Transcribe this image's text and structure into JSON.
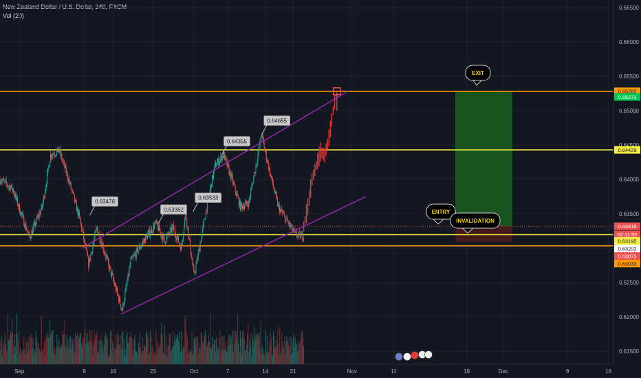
{
  "header": {
    "title": "New Zealand Dollar / U.S. Dollar, 240, FXCM",
    "indicator": "Vol (20)"
  },
  "colors": {
    "background": "#131722",
    "grid": "#1e222d",
    "up": "#26a69a",
    "down": "#ef5350",
    "orange_line": "#ff9800",
    "yellow_line": "#f5ec42",
    "channel": "#9c27b0",
    "target_zone": "#1b5e20",
    "stop_zone": "#4a1a1a",
    "callout_bg": "#c8c8c8",
    "bubble_bg": "#000000"
  },
  "chart_data": {
    "type": "candlestick",
    "y_ticks": [
      "0.66500",
      "0.66000",
      "0.65500",
      "0.65000",
      "0.64500",
      "0.64000",
      "0.63500",
      "0.63000",
      "0.62500",
      "0.62000",
      "0.61500"
    ],
    "x_ticks": [
      "Sep",
      "9",
      "16",
      "23",
      "Oct",
      "7",
      "14",
      "21",
      "Nov",
      "11",
      "18",
      "Dec",
      "9",
      "16",
      "23"
    ],
    "price_tags": [
      {
        "text": "0.65282",
        "price": 0.65282,
        "color": "#ff9800"
      },
      {
        "text": "0.65273",
        "price": 0.652,
        "color": "#00c853"
      },
      {
        "text": "0.64429",
        "price": 0.64429,
        "color": "#f5ec42"
      },
      {
        "text": "0.63318",
        "price": 0.63318,
        "color": "#ef5350"
      },
      {
        "text": "02:11:55",
        "price": 0.632,
        "color": "#ef5350"
      },
      {
        "text": "0.63195",
        "price": 0.63105,
        "color": "#f5ec42"
      },
      {
        "text": "0.63202",
        "price": 0.62995,
        "color": "#ffffff"
      },
      {
        "text": "0.63073",
        "price": 0.62885,
        "color": "#ef5350"
      },
      {
        "text": "0.63033",
        "price": 0.62775,
        "color": "#ff9800"
      }
    ],
    "horizontal_levels": [
      {
        "price": 0.65282,
        "color": "#ff9800"
      },
      {
        "price": 0.64429,
        "color": "#f5ec42"
      },
      {
        "price": 0.63195,
        "color": "#f5ec42"
      },
      {
        "price": 0.63033,
        "color": "#ff9800"
      }
    ],
    "callouts": [
      {
        "text": "0.63478",
        "price": 0.63478,
        "day": 21.3
      },
      {
        "text": "0.63362",
        "price": 0.63362,
        "day": 37.6
      },
      {
        "text": "0.63533",
        "price": 0.63533,
        "day": 45.8
      },
      {
        "text": "0.64355",
        "price": 0.64355,
        "day": 52.6
      },
      {
        "text": "0.64655",
        "price": 0.64655,
        "day": 62.1
      }
    ],
    "bubbles": [
      {
        "text": "EXIT",
        "price": 0.65282
      },
      {
        "text": "ENTRY",
        "price": 0.63318
      },
      {
        "text": "INVALIDATION",
        "price": 0.63195
      }
    ],
    "anchors": [
      {
        "day": 0,
        "price": 0.64
      },
      {
        "day": 3,
        "price": 0.6386
      },
      {
        "day": 7,
        "price": 0.6315
      },
      {
        "day": 10,
        "price": 0.636
      },
      {
        "day": 12,
        "price": 0.6436
      },
      {
        "day": 14,
        "price": 0.6442
      },
      {
        "day": 16,
        "price": 0.6405
      },
      {
        "day": 19,
        "price": 0.634
      },
      {
        "day": 21,
        "price": 0.6277
      },
      {
        "day": 23,
        "price": 0.633
      },
      {
        "day": 26,
        "price": 0.627
      },
      {
        "day": 29,
        "price": 0.621
      },
      {
        "day": 31,
        "price": 0.628
      },
      {
        "day": 34,
        "price": 0.631
      },
      {
        "day": 37,
        "price": 0.6336
      },
      {
        "day": 39,
        "price": 0.631
      },
      {
        "day": 41,
        "price": 0.633
      },
      {
        "day": 43,
        "price": 0.63
      },
      {
        "day": 44,
        "price": 0.6352
      },
      {
        "day": 46,
        "price": 0.626
      },
      {
        "day": 47,
        "price": 0.629
      },
      {
        "day": 49,
        "price": 0.636
      },
      {
        "day": 51,
        "price": 0.642
      },
      {
        "day": 53,
        "price": 0.6436
      },
      {
        "day": 55,
        "price": 0.64
      },
      {
        "day": 57,
        "price": 0.636
      },
      {
        "day": 59,
        "price": 0.6366
      },
      {
        "day": 61,
        "price": 0.643
      },
      {
        "day": 62,
        "price": 0.6466
      },
      {
        "day": 64,
        "price": 0.641
      },
      {
        "day": 66,
        "price": 0.636
      },
      {
        "day": 68,
        "price": 0.634
      },
      {
        "day": 70,
        "price": 0.632
      },
      {
        "day": 71,
        "price": 0.6318
      },
      {
        "day": 72,
        "price": 0.6318
      }
    ],
    "projection": [
      {
        "day": 72,
        "price": 0.6331
      },
      {
        "day": 73,
        "price": 0.636
      },
      {
        "day": 74,
        "price": 0.64
      },
      {
        "day": 75,
        "price": 0.642
      },
      {
        "day": 76,
        "price": 0.644
      },
      {
        "day": 77,
        "price": 0.6435
      },
      {
        "day": 78,
        "price": 0.646
      },
      {
        "day": 79,
        "price": 0.65
      },
      {
        "day": 79.7,
        "price": 0.6525
      }
    ]
  }
}
